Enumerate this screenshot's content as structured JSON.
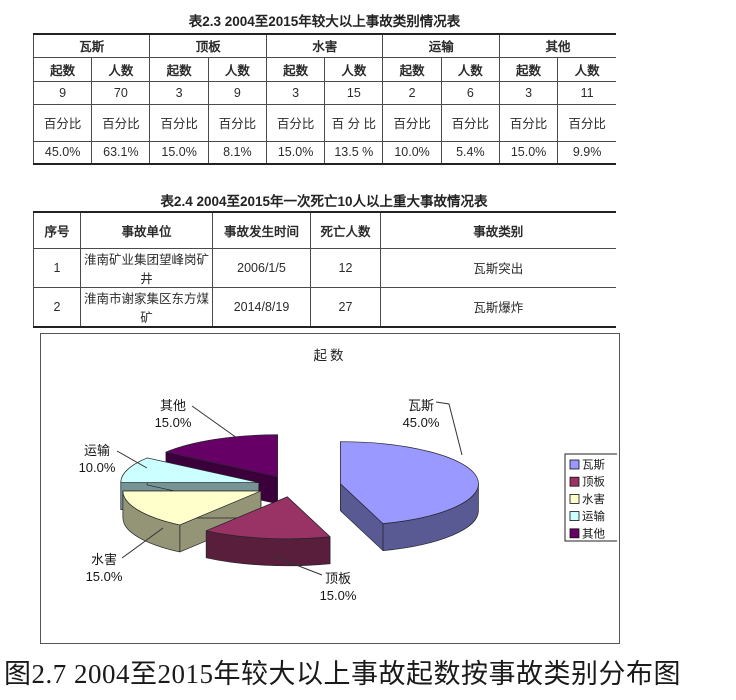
{
  "table1": {
    "title": "表2.3 2004至2015年较大以上事故类别情况表",
    "groups": [
      "瓦斯",
      "顶板",
      "水害",
      "运输",
      "其他"
    ],
    "sub_headers": [
      "起数",
      "人数"
    ],
    "counts": [
      "9",
      "70",
      "3",
      "9",
      "3",
      "15",
      "2",
      "6",
      "3",
      "11"
    ],
    "percent_headers": [
      "百分比",
      "百分比",
      "百分比",
      "百分比",
      "百分比",
      "百 分 比",
      "百分比",
      "百分比",
      "百分比",
      "百分比"
    ],
    "percents": [
      "45.0%",
      "63.1%",
      "15.0%",
      "8.1%",
      "15.0%",
      "13.5 %",
      "10.0%",
      "5.4%",
      "15.0%",
      "9.9%"
    ]
  },
  "table2": {
    "title": "表2.4 2004至2015年一次死亡10人以上重大事故情况表",
    "headers": [
      "序号",
      "事故单位",
      "事故发生时间",
      "死亡人数",
      "事故类别"
    ],
    "rows": [
      [
        "1",
        "淮南矿业集团望峰岗矿井",
        "2006/1/5",
        "12",
        "瓦斯突出"
      ],
      [
        "2",
        "淮南市谢家集区东方煤矿",
        "2014/8/19",
        "27",
        "瓦斯爆炸"
      ]
    ]
  },
  "chart_data": {
    "type": "pie",
    "style": "3d-exploded",
    "title": "起数",
    "labels": [
      "瓦斯",
      "顶板",
      "水害",
      "运输",
      "其他"
    ],
    "values": [
      45.0,
      15.0,
      15.0,
      10.0,
      15.0
    ],
    "value_labels": [
      "45.0%",
      "15.0%",
      "15.0%",
      "10.0%",
      "15.0%"
    ],
    "colors": [
      "#9999FF",
      "#993366",
      "#FFFFCC",
      "#CCFFFF",
      "#660066"
    ],
    "legend_position": "right"
  },
  "caption": "图2.7 2004至2015年较大以上事故起数按事故类别分布图"
}
